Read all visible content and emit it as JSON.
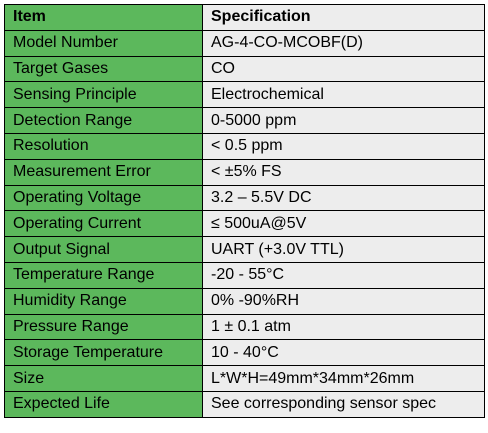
{
  "colors": {
    "item_column_bg": "#5cb85c",
    "spec_column_bg": "#ededed",
    "border": "#000000"
  },
  "table": {
    "header": {
      "item": "Item",
      "spec": "Specification"
    },
    "rows": [
      {
        "item": "Model Number",
        "spec": "AG-4-CO-MCOBF(D)"
      },
      {
        "item": "Target Gases",
        "spec": "CO"
      },
      {
        "item": "Sensing Principle",
        "spec": "Electrochemical"
      },
      {
        "item": "Detection Range",
        "spec": "0-5000 ppm"
      },
      {
        "item": "Resolution",
        "spec": "< 0.5 ppm"
      },
      {
        "item": "Measurement Error",
        "spec": "< ±5% FS"
      },
      {
        "item": "Operating Voltage",
        "spec": "3.2 – 5.5V DC"
      },
      {
        "item": "Operating Current",
        "spec": "≤ 500uA@5V"
      },
      {
        "item": "Output Signal",
        "spec": "UART (+3.0V TTL)"
      },
      {
        "item": "Temperature Range",
        "spec": "-20 - 55°C"
      },
      {
        "item": "Humidity Range",
        "spec": "0% -90%RH"
      },
      {
        "item": "Pressure Range",
        "spec": "1 ± 0.1 atm"
      },
      {
        "item": "Storage Temperature",
        "spec": "10 - 40°C"
      },
      {
        "item": "Size",
        "spec": "L*W*H=49mm*34mm*26mm"
      },
      {
        "item": "Expected Life",
        "spec": "See corresponding sensor spec"
      }
    ]
  }
}
